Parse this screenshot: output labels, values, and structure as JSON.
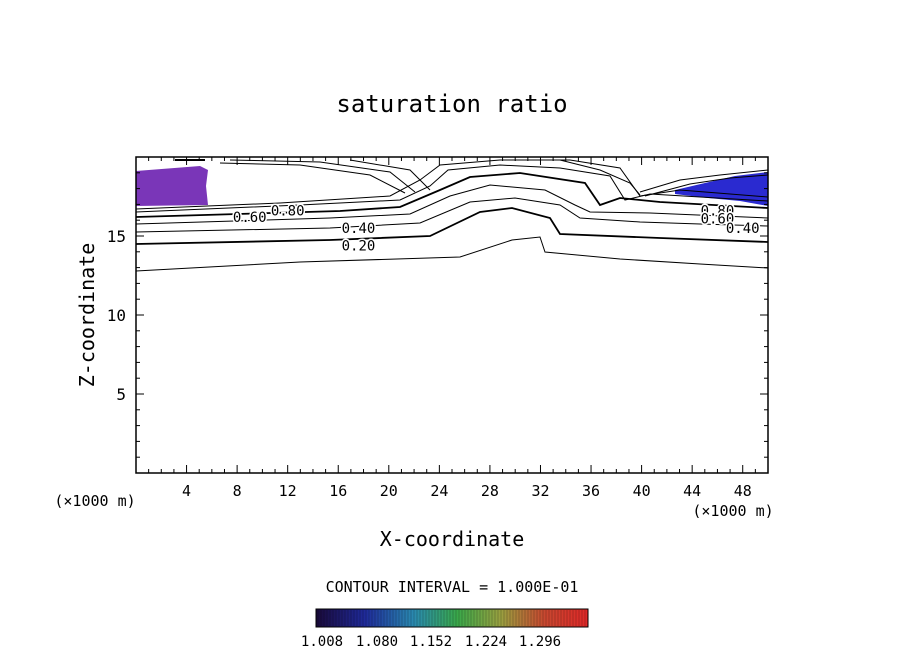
{
  "chart_data": {
    "type": "contour",
    "title": "saturation ratio",
    "xlabel": "X-coordinate",
    "ylabel": "Z-coordinate",
    "x_unit_left": "(×1000 m)",
    "x_unit_right": "(×1000 m)",
    "xlim": [
      0,
      50
    ],
    "ylim": [
      0,
      20
    ],
    "x_ticks": [
      4,
      8,
      12,
      16,
      20,
      24,
      28,
      32,
      36,
      40,
      44,
      48
    ],
    "y_ticks": [
      5,
      10,
      15
    ],
    "contour_interval_text": "CONTOUR INTERVAL = 1.000E-01",
    "contour_labels": [
      {
        "text": "0.20",
        "x": 17.6,
        "z": 14.4
      },
      {
        "text": "0.40",
        "x": 17.6,
        "z": 15.5
      },
      {
        "text": "0.60",
        "x": 9.0,
        "z": 16.2
      },
      {
        "text": "0.80",
        "x": 12.0,
        "z": 16.6
      },
      {
        "text": "0.80",
        "x": 46.0,
        "z": 16.6
      },
      {
        "text": "0.60",
        "x": 46.0,
        "z": 16.1
      },
      {
        "text": "0.40",
        "x": 48.0,
        "z": 15.5
      }
    ],
    "filled_regions": [
      {
        "name": "supersaturated-left",
        "x": [
          0.0,
          5.6
        ],
        "z": [
          16.7,
          19.1
        ],
        "color": "#7a36b8"
      },
      {
        "name": "supersaturated-right",
        "x": [
          42.0,
          50.0
        ],
        "z": [
          16.8,
          18.9
        ],
        "color": "#2a2ad0"
      }
    ],
    "colorbar": {
      "labels": [
        "1.008",
        "1.080",
        "1.152",
        "1.224",
        "1.296"
      ],
      "range": [
        1.008,
        1.33
      ]
    },
    "grid": false
  }
}
